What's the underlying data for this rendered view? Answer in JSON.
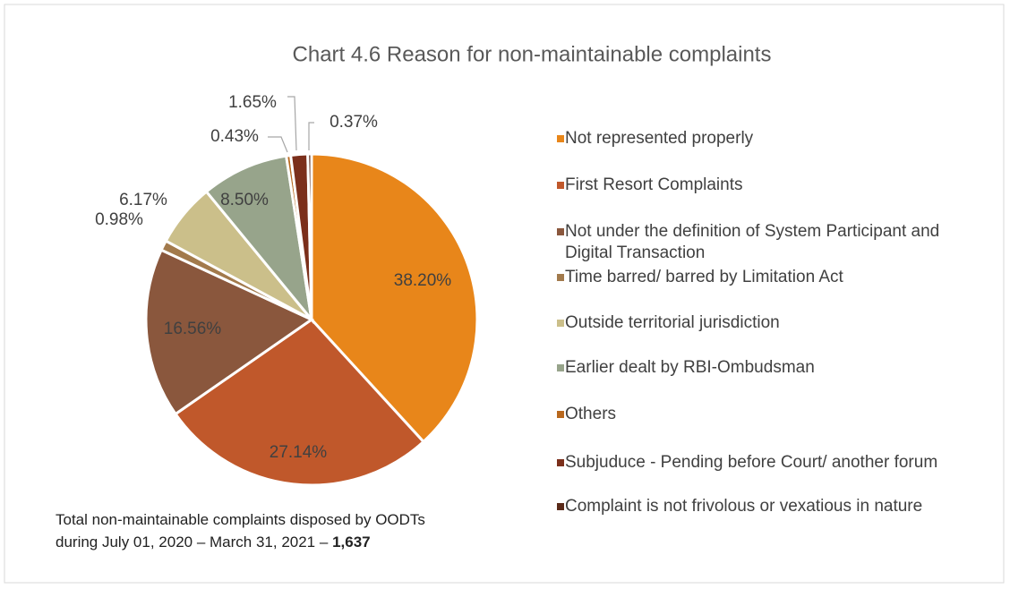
{
  "chart_data": {
    "type": "pie",
    "title": "Chart 4.6 Reason for non-maintainable complaints",
    "categories": [
      "Not represented properly",
      "First Resort Complaints",
      "Not under the definition of System Participant and Digital Transaction",
      "Time barred/ barred by Limitation Act",
      "Outside territorial jurisdiction",
      "Earlier dealt by RBI-Ombudsman",
      "Others",
      "Subjuduce - Pending before Court/ another forum",
      "Complaint is not frivolous or vexatious in nature"
    ],
    "values": [
      38.2,
      27.14,
      16.56,
      0.98,
      6.17,
      8.5,
      0.43,
      1.65,
      0.37
    ],
    "value_labels": [
      "38.20%",
      "27.14%",
      "16.56%",
      "0.98%",
      "6.17%",
      "8.50%",
      "0.43%",
      "1.65%",
      "0.37%"
    ],
    "colors": [
      "#e8861a",
      "#c0582b",
      "#8a573d",
      "#a27a4c",
      "#cbbf8a",
      "#97a48b",
      "#b8681e",
      "#7b2f1b",
      "#5a2a19"
    ],
    "legend": "right",
    "footnote": {
      "line1": "Total non-maintainable complaints disposed by OODTs",
      "line2": "during July 01, 2020 – March 31, 2021 –",
      "total": "1,637"
    }
  }
}
